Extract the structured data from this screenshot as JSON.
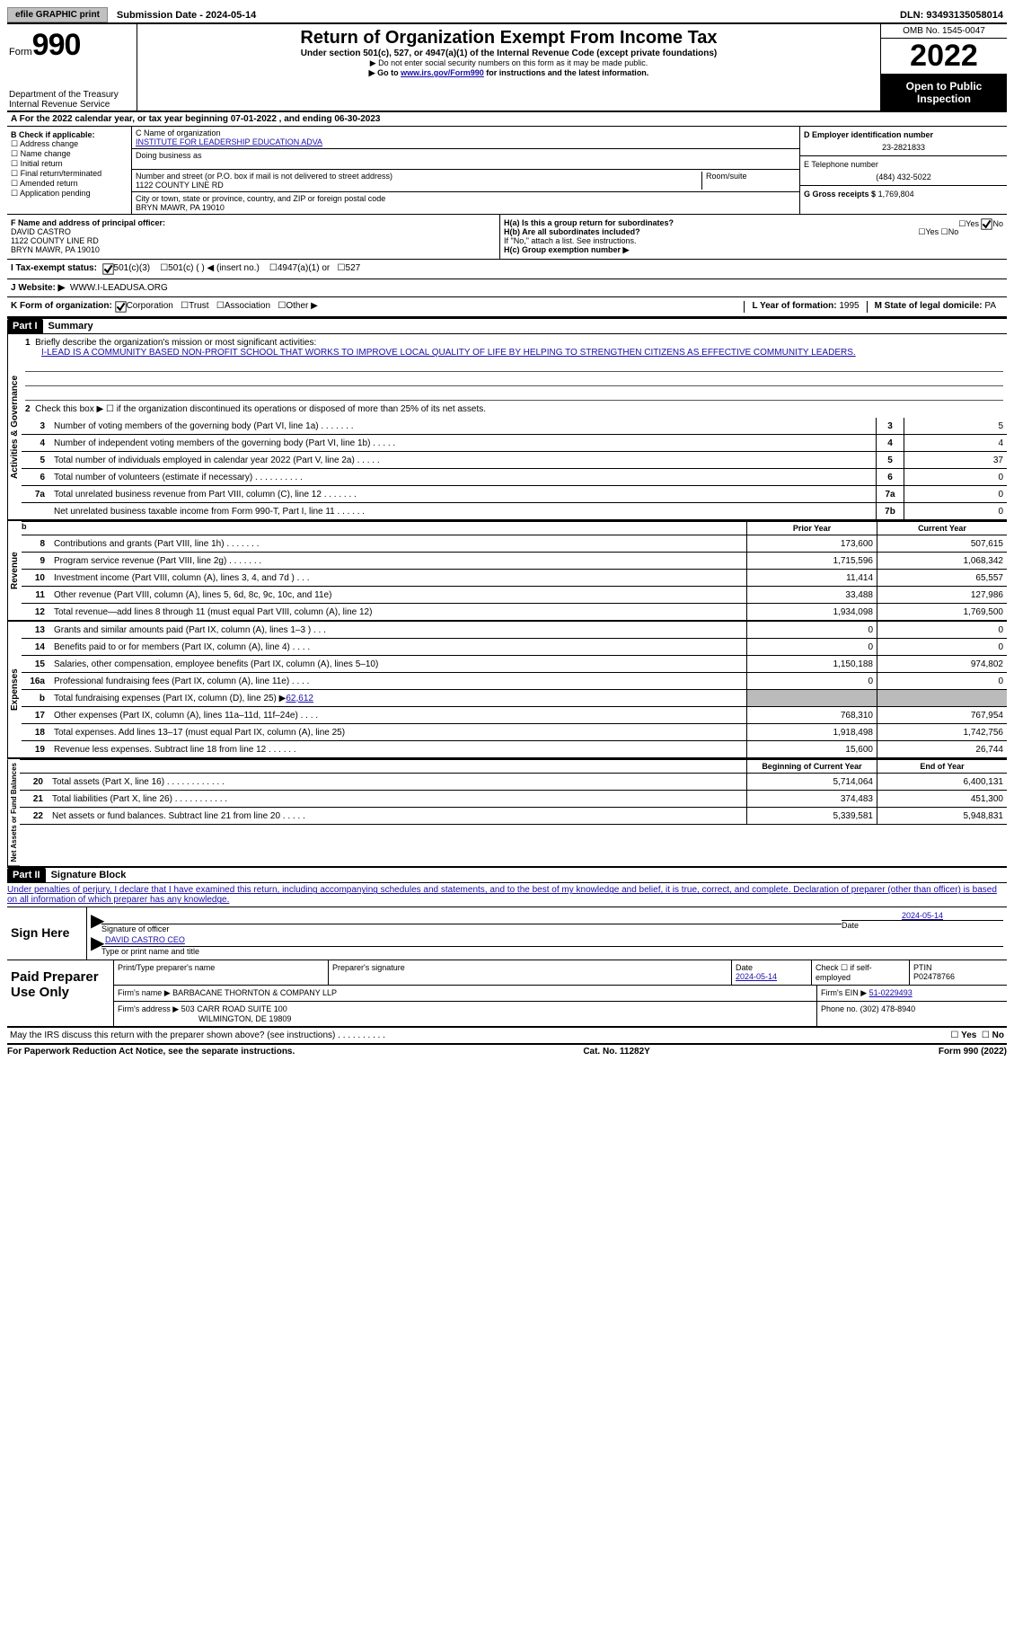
{
  "topbar": {
    "efile": "efile GRAPHIC print",
    "submission": "Submission Date - 2024-05-14",
    "dln": "DLN: 93493135058014"
  },
  "header": {
    "form_prefix": "Form",
    "form_number": "990",
    "dept": "Department of the Treasury",
    "irs": "Internal Revenue Service",
    "title": "Return of Organization Exempt From Income Tax",
    "subtitle": "Under section 501(c), 527, or 4947(a)(1) of the Internal Revenue Code (except private foundations)",
    "note1": "Do not enter social security numbers on this form as it may be made public.",
    "note2_prefix": "Go to ",
    "note2_link": "www.irs.gov/Form990",
    "note2_suffix": " for instructions and the latest information.",
    "omb": "OMB No. 1545-0047",
    "year": "2022",
    "inspect": "Open to Public Inspection"
  },
  "sectionA": "For the 2022 calendar year, or tax year beginning 07-01-2022    , and ending 06-30-2023",
  "colB": {
    "title": "B Check if applicable:",
    "opts": [
      "Address change",
      "Name change",
      "Initial return",
      "Final return/terminated",
      "Amended return",
      "Application pending"
    ]
  },
  "colC": {
    "name_label": "C Name of organization",
    "name": "INSTITUTE FOR LEADERSHIP EDUCATION ADVA",
    "dba_label": "Doing business as",
    "addr_label": "Number and street (or P.O. box if mail is not delivered to street address)",
    "room_label": "Room/suite",
    "addr": "1122 COUNTY LINE RD",
    "city_label": "City or town, state or province, country, and ZIP or foreign postal code",
    "city": "BRYN MAWR, PA   19010"
  },
  "colD": {
    "d_label": "D Employer identification number",
    "d_val": "23-2821833",
    "e_label": "E Telephone number",
    "e_val": "(484) 432-5022",
    "g_label": "G Gross receipts $",
    "g_val": "1,769,804"
  },
  "f": {
    "label": "F Name and address of principal officer:",
    "line1": "DAVID CASTRO",
    "line2": "1122 COUNTY LINE RD",
    "line3": "BRYN MAWR, PA   19010"
  },
  "h": {
    "a": "H(a)  Is this a group return for subordinates?",
    "b": "H(b)  Are all subordinates included?",
    "b_note": "If \"No,\" attach a list. See instructions.",
    "c": "H(c)  Group exemption number ▶"
  },
  "tax_status": {
    "label": "I   Tax-exempt status:",
    "opts": [
      "501(c)(3)",
      "501(c) (  ) ◀ (insert no.)",
      "4947(a)(1) or",
      "527"
    ]
  },
  "website": {
    "label": "J   Website: ▶",
    "val": "WWW.I-LEADUSA.ORG"
  },
  "k": {
    "label": "K Form of organization:",
    "opts": [
      "Corporation",
      "Trust",
      "Association",
      "Other ▶"
    ]
  },
  "l": {
    "label": "L Year of formation:",
    "val": "1995"
  },
  "m": {
    "label": "M State of legal domicile:",
    "val": "PA"
  },
  "part1": {
    "tag": "Part I",
    "title": "Summary"
  },
  "mission": {
    "prompt": "Briefly describe the organization's mission or most significant activities:",
    "text": "I-LEAD IS A COMMUNITY BASED NON-PROFIT SCHOOL THAT WORKS TO IMPROVE LOCAL QUALITY OF LIFE BY HELPING TO STRENGTHEN CITIZENS AS EFFECTIVE COMMUNITY LEADERS."
  },
  "line2": "Check this box ▶ ☐  if the organization discontinued its operations or disposed of more than 25% of its net assets.",
  "govLines": [
    {
      "n": "3",
      "d": "Number of voting members of the governing body (Part VI, line 1a)   .   .   .   .   .   .   .",
      "b": "3",
      "v": "5"
    },
    {
      "n": "4",
      "d": "Number of independent voting members of the governing body (Part VI, line 1b)   .   .   .   .   .",
      "b": "4",
      "v": "4"
    },
    {
      "n": "5",
      "d": "Total number of individuals employed in calendar year 2022 (Part V, line 2a)   .   .   .   .   .",
      "b": "5",
      "v": "37"
    },
    {
      "n": "6",
      "d": "Total number of volunteers (estimate if necessary)   .   .   .   .   .   .   .   .   .   .",
      "b": "6",
      "v": "0"
    },
    {
      "n": "7a",
      "d": "Total unrelated business revenue from Part VIII, column (C), line 12   .   .   .   .   .   .   .",
      "b": "7a",
      "v": "0"
    },
    {
      "n": "",
      "d": "Net unrelated business taxable income from Form 990-T, Part I, line 11   .   .   .   .   .   .",
      "b": "7b",
      "v": "0"
    }
  ],
  "colHeaders": {
    "prior": "Prior Year",
    "current": "Current Year",
    "boy": "Beginning of Current Year",
    "eoy": "End of Year"
  },
  "revLines": [
    {
      "n": "8",
      "d": "Contributions and grants (Part VIII, line 1h)   .   .   .   .   .   .   .",
      "p": "173,600",
      "c": "507,615"
    },
    {
      "n": "9",
      "d": "Program service revenue (Part VIII, line 2g)   .   .   .   .   .   .   .",
      "p": "1,715,596",
      "c": "1,068,342"
    },
    {
      "n": "10",
      "d": "Investment income (Part VIII, column (A), lines 3, 4, and 7d )   .   .   .",
      "p": "11,414",
      "c": "65,557"
    },
    {
      "n": "11",
      "d": "Other revenue (Part VIII, column (A), lines 5, 6d, 8c, 9c, 10c, and 11e)",
      "p": "33,488",
      "c": "127,986"
    },
    {
      "n": "12",
      "d": "Total revenue—add lines 8 through 11 (must equal Part VIII, column (A), line 12)",
      "p": "1,934,098",
      "c": "1,769,500"
    }
  ],
  "expLines": [
    {
      "n": "13",
      "d": "Grants and similar amounts paid (Part IX, column (A), lines 1–3 )   .   .   .",
      "p": "0",
      "c": "0"
    },
    {
      "n": "14",
      "d": "Benefits paid to or for members (Part IX, column (A), line 4)   .   .   .   .",
      "p": "0",
      "c": "0"
    },
    {
      "n": "15",
      "d": "Salaries, other compensation, employee benefits (Part IX, column (A), lines 5–10)",
      "p": "1,150,188",
      "c": "974,802"
    },
    {
      "n": "16a",
      "d": "Professional fundraising fees (Part IX, column (A), line 11e)   .   .   .   .",
      "p": "0",
      "c": "0"
    }
  ],
  "line16b": {
    "n": "b",
    "d": "Total fundraising expenses (Part IX, column (D), line 25) ▶",
    "v": "62,612"
  },
  "expLines2": [
    {
      "n": "17",
      "d": "Other expenses (Part IX, column (A), lines 11a–11d, 11f–24e)   .   .   .   .",
      "p": "768,310",
      "c": "767,954"
    },
    {
      "n": "18",
      "d": "Total expenses. Add lines 13–17 (must equal Part IX, column (A), line 25)",
      "p": "1,918,498",
      "c": "1,742,756"
    },
    {
      "n": "19",
      "d": "Revenue less expenses. Subtract line 18 from line 12   .   .   .   .   .   .",
      "p": "15,600",
      "c": "26,744"
    }
  ],
  "netLines": [
    {
      "n": "20",
      "d": "Total assets (Part X, line 16)   .   .   .   .   .   .   .   .   .   .   .   .",
      "p": "5,714,064",
      "c": "6,400,131"
    },
    {
      "n": "21",
      "d": "Total liabilities (Part X, line 26)   .   .   .   .   .   .   .   .   .   .   .",
      "p": "374,483",
      "c": "451,300"
    },
    {
      "n": "22",
      "d": "Net assets or fund balances. Subtract line 21 from line 20   .   .   .   .   .",
      "p": "5,339,581",
      "c": "5,948,831"
    }
  ],
  "sideLabels": {
    "gov": "Activities & Governance",
    "rev": "Revenue",
    "exp": "Expenses",
    "net": "Net Assets or Fund Balances"
  },
  "part2": {
    "tag": "Part II",
    "title": "Signature Block"
  },
  "penalty": "Under penalties of perjury, I declare that I have examined this return, including accompanying schedules and statements, and to the best of my knowledge and belief, it is true, correct, and complete. Declaration of preparer (other than officer) is based on all information of which preparer has any knowledge.",
  "sign": {
    "here": "Sign Here",
    "sigoff": "Signature of officer",
    "date": "Date",
    "date_val": "2024-05-14",
    "name": "DAVID CASTRO  CEO",
    "name_label": "Type or print name and title"
  },
  "preparer": {
    "label": "Paid Preparer Use Only",
    "h1": "Print/Type preparer's name",
    "h2": "Preparer's signature",
    "h3_label": "Date",
    "h3": "2024-05-14",
    "h4": "Check ☐ if self-employed",
    "h5_label": "PTIN",
    "h5": "P02478766",
    "firm_label": "Firm's name     ▶",
    "firm": "BARBACANE THORNTON & COMPANY LLP",
    "ein_label": "Firm's EIN ▶",
    "ein": "51-0229493",
    "addr_label": "Firm's address ▶",
    "addr1": "503 CARR ROAD SUITE 100",
    "addr2": "WILMINGTON, DE   19809",
    "phone_label": "Phone no.",
    "phone": "(302) 478-8940"
  },
  "discuss": "May the IRS discuss this return with the preparer shown above? (see instructions)   .   .   .   .   .   .   .   .   .   .",
  "footer": {
    "left": "For Paperwork Reduction Act Notice, see the separate instructions.",
    "mid": "Cat. No. 11282Y",
    "right": "Form 990 (2022)"
  }
}
